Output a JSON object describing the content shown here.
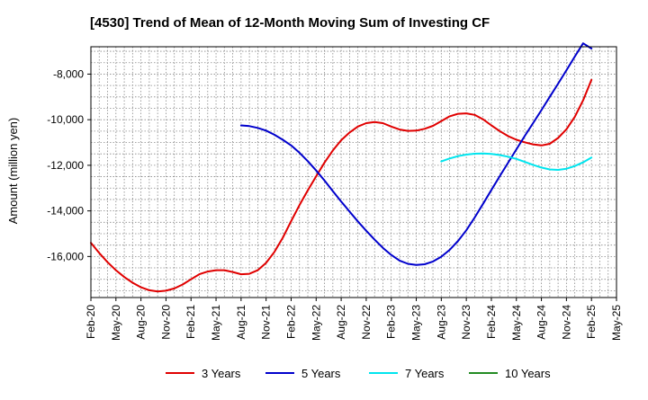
{
  "chart_data": {
    "type": "line",
    "title": "[4530]  Trend of Mean of 12-Month Moving Sum of Investing CF",
    "xlabel": "",
    "ylabel": "Amount (million yen)",
    "ylim": [
      -17800,
      -6800
    ],
    "yticks": [
      -16000,
      -14000,
      -12000,
      -10000,
      -8000
    ],
    "ytick_labels": [
      "-16,000",
      "-14,000",
      "-12,000",
      "-10,000",
      "-8,000"
    ],
    "x_range": [
      "2020-02",
      "2025-05"
    ],
    "xtick_labels": [
      "Feb-20",
      "May-20",
      "Aug-20",
      "Nov-20",
      "Feb-21",
      "May-21",
      "Aug-21",
      "Nov-21",
      "Feb-22",
      "May-22",
      "Aug-22",
      "Nov-22",
      "Feb-23",
      "May-23",
      "Aug-23",
      "Nov-23",
      "Feb-24",
      "May-24",
      "Aug-24",
      "Nov-24",
      "Feb-25",
      "May-25"
    ],
    "grid": true,
    "legend_position": "bottom",
    "series": [
      {
        "name": "3 Years",
        "color": "#e00000",
        "points": [
          [
            "2020-02",
            -15400
          ],
          [
            "2020-03",
            -15850
          ],
          [
            "2020-04",
            -16250
          ],
          [
            "2020-05",
            -16600
          ],
          [
            "2020-06",
            -16900
          ],
          [
            "2020-07",
            -17150
          ],
          [
            "2020-08",
            -17350
          ],
          [
            "2020-09",
            -17480
          ],
          [
            "2020-10",
            -17530
          ],
          [
            "2020-11",
            -17500
          ],
          [
            "2020-12",
            -17400
          ],
          [
            "2021-01",
            -17230
          ],
          [
            "2021-02",
            -17000
          ],
          [
            "2021-03",
            -16780
          ],
          [
            "2021-04",
            -16660
          ],
          [
            "2021-05",
            -16600
          ],
          [
            "2021-06",
            -16600
          ],
          [
            "2021-07",
            -16680
          ],
          [
            "2021-08",
            -16780
          ],
          [
            "2021-09",
            -16760
          ],
          [
            "2021-10",
            -16600
          ],
          [
            "2021-11",
            -16280
          ],
          [
            "2021-12",
            -15800
          ],
          [
            "2022-01",
            -15180
          ],
          [
            "2022-02",
            -14450
          ],
          [
            "2022-03",
            -13750
          ],
          [
            "2022-04",
            -13100
          ],
          [
            "2022-05",
            -12480
          ],
          [
            "2022-06",
            -11880
          ],
          [
            "2022-07",
            -11350
          ],
          [
            "2022-08",
            -10900
          ],
          [
            "2022-09",
            -10560
          ],
          [
            "2022-10",
            -10300
          ],
          [
            "2022-11",
            -10150
          ],
          [
            "2022-12",
            -10100
          ],
          [
            "2023-01",
            -10150
          ],
          [
            "2023-02",
            -10300
          ],
          [
            "2023-03",
            -10430
          ],
          [
            "2023-04",
            -10490
          ],
          [
            "2023-05",
            -10480
          ],
          [
            "2023-06",
            -10400
          ],
          [
            "2023-07",
            -10270
          ],
          [
            "2023-08",
            -10060
          ],
          [
            "2023-09",
            -9850
          ],
          [
            "2023-10",
            -9740
          ],
          [
            "2023-11",
            -9720
          ],
          [
            "2023-12",
            -9790
          ],
          [
            "2024-01",
            -9980
          ],
          [
            "2024-02",
            -10250
          ],
          [
            "2024-03",
            -10500
          ],
          [
            "2024-04",
            -10720
          ],
          [
            "2024-05",
            -10880
          ],
          [
            "2024-06",
            -10990
          ],
          [
            "2024-07",
            -11080
          ],
          [
            "2024-08",
            -11130
          ],
          [
            "2024-09",
            -11060
          ],
          [
            "2024-10",
            -10800
          ],
          [
            "2024-11",
            -10420
          ],
          [
            "2024-12",
            -9870
          ],
          [
            "2025-01",
            -9150
          ],
          [
            "2025-02",
            -8250
          ]
        ]
      },
      {
        "name": "5 Years",
        "color": "#0000cc",
        "points": [
          [
            "2021-08",
            -10250
          ],
          [
            "2021-09",
            -10280
          ],
          [
            "2021-10",
            -10360
          ],
          [
            "2021-11",
            -10480
          ],
          [
            "2021-12",
            -10660
          ],
          [
            "2022-01",
            -10880
          ],
          [
            "2022-02",
            -11130
          ],
          [
            "2022-03",
            -11450
          ],
          [
            "2022-04",
            -11820
          ],
          [
            "2022-05",
            -12230
          ],
          [
            "2022-06",
            -12670
          ],
          [
            "2022-07",
            -13130
          ],
          [
            "2022-08",
            -13590
          ],
          [
            "2022-09",
            -14030
          ],
          [
            "2022-10",
            -14460
          ],
          [
            "2022-11",
            -14870
          ],
          [
            "2022-12",
            -15260
          ],
          [
            "2023-01",
            -15620
          ],
          [
            "2023-02",
            -15930
          ],
          [
            "2023-03",
            -16180
          ],
          [
            "2023-04",
            -16320
          ],
          [
            "2023-05",
            -16370
          ],
          [
            "2023-06",
            -16340
          ],
          [
            "2023-07",
            -16220
          ],
          [
            "2023-08",
            -16010
          ],
          [
            "2023-09",
            -15710
          ],
          [
            "2023-10",
            -15320
          ],
          [
            "2023-11",
            -14850
          ],
          [
            "2023-12",
            -14290
          ],
          [
            "2024-01",
            -13690
          ],
          [
            "2024-02",
            -13080
          ],
          [
            "2024-03",
            -12480
          ],
          [
            "2024-04",
            -11890
          ],
          [
            "2024-05",
            -11300
          ],
          [
            "2024-06",
            -10720
          ],
          [
            "2024-07",
            -10150
          ],
          [
            "2024-08",
            -9580
          ],
          [
            "2024-09",
            -9000
          ],
          [
            "2024-10",
            -8420
          ],
          [
            "2024-11",
            -7830
          ],
          [
            "2024-12",
            -7230
          ],
          [
            "2025-01",
            -6650
          ],
          [
            "2025-02",
            -6880
          ]
        ]
      },
      {
        "name": "7 Years",
        "color": "#00e5ee",
        "points": [
          [
            "2023-08",
            -11830
          ],
          [
            "2023-09",
            -11700
          ],
          [
            "2023-10",
            -11600
          ],
          [
            "2023-11",
            -11530
          ],
          [
            "2023-12",
            -11490
          ],
          [
            "2024-01",
            -11480
          ],
          [
            "2024-02",
            -11500
          ],
          [
            "2024-03",
            -11550
          ],
          [
            "2024-04",
            -11620
          ],
          [
            "2024-05",
            -11720
          ],
          [
            "2024-06",
            -11850
          ],
          [
            "2024-07",
            -11980
          ],
          [
            "2024-08",
            -12100
          ],
          [
            "2024-09",
            -12180
          ],
          [
            "2024-10",
            -12200
          ],
          [
            "2024-11",
            -12150
          ],
          [
            "2024-12",
            -12030
          ],
          [
            "2025-01",
            -11870
          ],
          [
            "2025-02",
            -11660
          ]
        ]
      },
      {
        "name": "10 Years",
        "color": "#228b22",
        "points": []
      }
    ]
  }
}
